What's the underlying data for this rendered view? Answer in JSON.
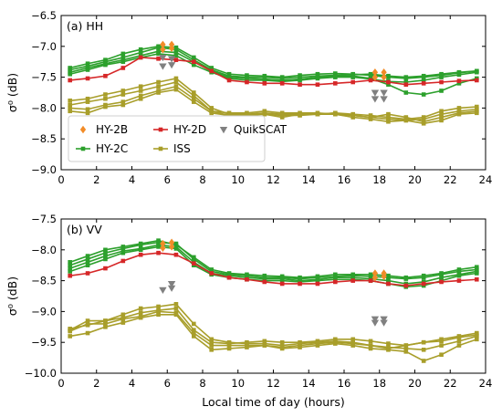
{
  "chart_data": [
    {
      "type": "line",
      "panel_label": "(a) HH",
      "ylabel": "σ⁰ (dB)",
      "xlabel": "",
      "xlim": [
        0,
        24
      ],
      "ylim": [
        -9.0,
        -6.5
      ],
      "xticks": [
        0,
        2,
        4,
        6,
        8,
        10,
        12,
        14,
        16,
        18,
        20,
        22,
        24
      ],
      "xtick_labels": [
        "0",
        "2",
        "4",
        "6",
        "8",
        "10",
        "12",
        "14",
        "16",
        "18",
        "20",
        "22",
        "24"
      ],
      "yticks": [
        -9.0,
        -8.5,
        -8.0,
        -7.5,
        -7.0,
        -6.5
      ],
      "ytick_labels": [
        "−9.0",
        "−8.5",
        "−8.0",
        "−7.5",
        "−7.0",
        "−6.5"
      ],
      "grid": false,
      "legend": {
        "placement": "lower-left",
        "entries": [
          {
            "label": "HY-2B",
            "color": "#f28c28",
            "marker": "diamond",
            "line": false
          },
          {
            "label": "HY-2D",
            "color": "#d62728",
            "marker": "square",
            "line": true
          },
          {
            "label": "QuikSCAT",
            "color": "#808080",
            "marker": "tri-down",
            "line": false
          },
          {
            "label": "HY-2C",
            "color": "#2ca02c",
            "marker": "square",
            "line": true
          },
          {
            "label": "ISS",
            "color": "#a89e2a",
            "marker": "square",
            "line": true
          }
        ]
      },
      "x": [
        0.5,
        1.5,
        2.5,
        3.5,
        4.5,
        5.5,
        6.5,
        7.5,
        8.5,
        9.5,
        10.5,
        11.5,
        12.5,
        13.5,
        14.5,
        15.5,
        16.5,
        17.5,
        18.5,
        19.5,
        20.5,
        21.5,
        22.5,
        23.5
      ],
      "series": [
        {
          "group": "HY-2C",
          "color": "#2ca02c",
          "values": [
            -7.38,
            -7.32,
            -7.25,
            -7.18,
            -7.1,
            -7.02,
            -7.05,
            -7.22,
            -7.38,
            -7.48,
            -7.5,
            -7.5,
            -7.52,
            -7.5,
            -7.48,
            -7.47,
            -7.46,
            -7.45,
            -7.48,
            -7.5,
            -7.48,
            -7.45,
            -7.42,
            -7.4
          ]
        },
        {
          "group": "HY-2C",
          "color": "#2ca02c",
          "values": [
            -7.42,
            -7.35,
            -7.28,
            -7.22,
            -7.15,
            -7.08,
            -7.1,
            -7.25,
            -7.4,
            -7.5,
            -7.52,
            -7.53,
            -7.55,
            -7.53,
            -7.5,
            -7.49,
            -7.48,
            -7.52,
            -7.62,
            -7.75,
            -7.78,
            -7.72,
            -7.6,
            -7.52
          ]
        },
        {
          "group": "HY-2C",
          "color": "#2ca02c",
          "values": [
            -7.35,
            -7.28,
            -7.22,
            -7.12,
            -7.05,
            -7.0,
            -7.02,
            -7.18,
            -7.35,
            -7.45,
            -7.47,
            -7.48,
            -7.5,
            -7.47,
            -7.45,
            -7.44,
            -7.45,
            -7.47,
            -7.5,
            -7.52,
            -7.5,
            -7.47,
            -7.43,
            -7.4
          ]
        },
        {
          "group": "HY-2C",
          "color": "#2ca02c",
          "values": [
            -7.45,
            -7.38,
            -7.3,
            -7.25,
            -7.18,
            -7.12,
            -7.15,
            -7.3,
            -7.42,
            -7.52,
            -7.55,
            -7.55,
            -7.57,
            -7.55,
            -7.52,
            -7.5,
            -7.5,
            -7.53,
            -7.57,
            -7.58,
            -7.55,
            -7.5,
            -7.46,
            -7.42
          ]
        },
        {
          "group": "HY-2D",
          "color": "#d62728",
          "values": [
            -7.55,
            -7.52,
            -7.48,
            -7.35,
            -7.18,
            -7.2,
            -7.22,
            -7.25,
            -7.4,
            -7.55,
            -7.58,
            -7.6,
            -7.6,
            -7.62,
            -7.62,
            -7.6,
            -7.58,
            -7.55,
            -7.58,
            -7.62,
            -7.6,
            -7.58,
            -7.56,
            -7.55
          ]
        },
        {
          "group": "ISS",
          "color": "#a89e2a",
          "values": [
            -7.88,
            -7.85,
            -7.78,
            -7.72,
            -7.65,
            -7.58,
            -7.52,
            -7.75,
            -8.0,
            -8.1,
            -8.1,
            -8.08,
            -8.1,
            -8.1,
            -8.1,
            -8.08,
            -8.1,
            -8.12,
            -8.15,
            -8.18,
            -8.15,
            -8.05,
            -8.0,
            -7.98
          ]
        },
        {
          "group": "ISS",
          "color": "#a89e2a",
          "values": [
            -7.95,
            -7.9,
            -7.85,
            -7.78,
            -7.72,
            -7.65,
            -7.58,
            -7.8,
            -8.05,
            -8.08,
            -8.08,
            -8.05,
            -8.08,
            -8.08,
            -8.08,
            -8.1,
            -8.12,
            -8.15,
            -8.18,
            -8.2,
            -8.18,
            -8.1,
            -8.05,
            -8.02
          ]
        },
        {
          "group": "ISS",
          "color": "#a89e2a",
          "values": [
            -8.0,
            -8.02,
            -7.95,
            -7.9,
            -7.8,
            -7.72,
            -7.65,
            -7.85,
            -8.05,
            -8.12,
            -8.1,
            -8.1,
            -8.12,
            -8.12,
            -8.1,
            -8.08,
            -8.12,
            -8.15,
            -8.1,
            -8.15,
            -8.22,
            -8.15,
            -8.08,
            -8.05
          ]
        },
        {
          "group": "ISS",
          "color": "#a89e2a",
          "values": [
            -8.05,
            -8.08,
            -7.98,
            -7.95,
            -7.85,
            -7.75,
            -7.7,
            -7.9,
            -8.08,
            -8.12,
            -8.12,
            -8.1,
            -8.15,
            -8.1,
            -8.1,
            -8.1,
            -8.15,
            -8.18,
            -8.22,
            -8.2,
            -8.25,
            -8.2,
            -8.1,
            -8.08
          ]
        }
      ],
      "scatter": [
        {
          "group": "HY-2B",
          "color": "#f28c28",
          "marker": "diamond",
          "points": [
            [
              5.75,
              -6.97
            ],
            [
              5.75,
              -7.05
            ],
            [
              6.25,
              -6.97
            ],
            [
              6.25,
              -7.03
            ],
            [
              17.75,
              -7.42
            ],
            [
              17.75,
              -7.5
            ],
            [
              18.25,
              -7.42
            ],
            [
              18.25,
              -7.5
            ]
          ]
        },
        {
          "group": "QuikSCAT",
          "color": "#808080",
          "marker": "tri-down",
          "points": [
            [
              5.75,
              -7.18
            ],
            [
              5.75,
              -7.32
            ],
            [
              6.25,
              -7.2
            ],
            [
              6.25,
              -7.3
            ],
            [
              17.75,
              -7.75
            ],
            [
              17.75,
              -7.85
            ],
            [
              18.25,
              -7.75
            ],
            [
              18.25,
              -7.85
            ]
          ]
        }
      ]
    },
    {
      "type": "line",
      "panel_label": "(b) VV",
      "ylabel": "σ⁰ (dB)",
      "xlabel": "Local time of day (hours)",
      "xlim": [
        0,
        24
      ],
      "ylim": [
        -10.0,
        -7.5
      ],
      "xticks": [
        0,
        2,
        4,
        6,
        8,
        10,
        12,
        14,
        16,
        18,
        20,
        22,
        24
      ],
      "xtick_labels": [
        "0",
        "2",
        "4",
        "6",
        "8",
        "10",
        "12",
        "14",
        "16",
        "18",
        "20",
        "22",
        "24"
      ],
      "yticks": [
        -10.0,
        -9.5,
        -9.0,
        -8.5,
        -8.0,
        -7.5
      ],
      "ytick_labels": [
        "−10.0",
        "−9.5",
        "−9.0",
        "−8.5",
        "−8.0",
        "−7.5"
      ],
      "grid": false,
      "x": [
        0.5,
        1.5,
        2.5,
        3.5,
        4.5,
        5.5,
        6.5,
        7.5,
        8.5,
        9.5,
        10.5,
        11.5,
        12.5,
        13.5,
        14.5,
        15.5,
        16.5,
        17.5,
        18.5,
        19.5,
        20.5,
        21.5,
        22.5,
        23.5
      ],
      "series": [
        {
          "group": "HY-2C",
          "color": "#2ca02c",
          "values": [
            -8.25,
            -8.15,
            -8.05,
            -7.98,
            -7.92,
            -7.88,
            -7.9,
            -8.15,
            -8.35,
            -8.4,
            -8.42,
            -8.45,
            -8.45,
            -8.47,
            -8.45,
            -8.43,
            -8.42,
            -8.43,
            -8.45,
            -8.47,
            -8.45,
            -8.4,
            -8.35,
            -8.32
          ]
        },
        {
          "group": "HY-2C",
          "color": "#2ca02c",
          "values": [
            -8.3,
            -8.2,
            -8.1,
            -8.02,
            -7.98,
            -7.92,
            -7.95,
            -8.2,
            -8.38,
            -8.42,
            -8.45,
            -8.47,
            -8.47,
            -8.5,
            -8.48,
            -8.45,
            -8.45,
            -8.47,
            -8.5,
            -8.55,
            -8.52,
            -8.45,
            -8.4,
            -8.35
          ]
        },
        {
          "group": "HY-2C",
          "color": "#2ca02c",
          "values": [
            -8.2,
            -8.1,
            -8.0,
            -7.95,
            -7.9,
            -7.85,
            -7.92,
            -8.12,
            -8.32,
            -8.38,
            -8.4,
            -8.42,
            -8.43,
            -8.45,
            -8.43,
            -8.4,
            -8.4,
            -8.4,
            -8.42,
            -8.45,
            -8.42,
            -8.38,
            -8.32,
            -8.28
          ]
        },
        {
          "group": "HY-2C",
          "color": "#2ca02c",
          "values": [
            -8.35,
            -8.25,
            -8.15,
            -8.05,
            -8.0,
            -7.95,
            -7.98,
            -8.25,
            -8.4,
            -8.45,
            -8.48,
            -8.5,
            -8.5,
            -8.52,
            -8.5,
            -8.48,
            -8.48,
            -8.5,
            -8.55,
            -8.6,
            -8.58,
            -8.5,
            -8.42,
            -8.38
          ]
        },
        {
          "group": "HY-2D",
          "color": "#d62728",
          "values": [
            -8.42,
            -8.38,
            -8.3,
            -8.18,
            -8.08,
            -8.05,
            -8.08,
            -8.22,
            -8.38,
            -8.45,
            -8.48,
            -8.52,
            -8.55,
            -8.55,
            -8.55,
            -8.52,
            -8.5,
            -8.5,
            -8.55,
            -8.58,
            -8.55,
            -8.52,
            -8.5,
            -8.48
          ]
        },
        {
          "group": "ISS",
          "color": "#a89e2a",
          "values": [
            -9.28,
            -9.22,
            -9.15,
            -9.1,
            -9.02,
            -8.98,
            -8.95,
            -9.3,
            -9.5,
            -9.52,
            -9.5,
            -9.48,
            -9.5,
            -9.5,
            -9.48,
            -9.45,
            -9.45,
            -9.48,
            -9.52,
            -9.55,
            -9.5,
            -9.45,
            -9.4,
            -9.35
          ]
        },
        {
          "group": "ISS",
          "color": "#a89e2a",
          "values": [
            -9.3,
            -9.15,
            -9.15,
            -9.05,
            -8.95,
            -8.92,
            -8.88,
            -9.2,
            -9.45,
            -9.5,
            -9.52,
            -9.52,
            -9.55,
            -9.52,
            -9.5,
            -9.48,
            -9.5,
            -9.55,
            -9.6,
            -9.55,
            -9.5,
            -9.48,
            -9.42,
            -9.38
          ]
        },
        {
          "group": "ISS",
          "color": "#a89e2a",
          "values": [
            -9.32,
            -9.2,
            -9.2,
            -9.12,
            -9.08,
            -9.0,
            -9.02,
            -9.35,
            -9.55,
            -9.55,
            -9.55,
            -9.55,
            -9.58,
            -9.55,
            -9.52,
            -9.5,
            -9.52,
            -9.55,
            -9.58,
            -9.6,
            -9.62,
            -9.55,
            -9.48,
            -9.4
          ]
        },
        {
          "group": "ISS",
          "color": "#a89e2a",
          "values": [
            -9.4,
            -9.35,
            -9.25,
            -9.18,
            -9.1,
            -9.05,
            -9.05,
            -9.4,
            -9.62,
            -9.6,
            -9.58,
            -9.55,
            -9.6,
            -9.58,
            -9.55,
            -9.52,
            -9.55,
            -9.6,
            -9.62,
            -9.65,
            -9.8,
            -9.7,
            -9.55,
            -9.45
          ]
        }
      ],
      "scatter": [
        {
          "group": "HY-2B",
          "color": "#f28c28",
          "marker": "diamond",
          "points": [
            [
              5.75,
              -7.9
            ],
            [
              5.75,
              -7.97
            ],
            [
              6.25,
              -7.88
            ],
            [
              6.25,
              -7.95
            ],
            [
              17.75,
              -8.38
            ],
            [
              17.75,
              -8.45
            ],
            [
              18.25,
              -8.38
            ],
            [
              18.25,
              -8.43
            ]
          ]
        },
        {
          "group": "QuikSCAT",
          "color": "#808080",
          "marker": "tri-down",
          "points": [
            [
              5.75,
              -8.65
            ],
            [
              6.25,
              -8.55
            ],
            [
              6.25,
              -8.62
            ],
            [
              17.75,
              -9.12
            ],
            [
              17.75,
              -9.18
            ],
            [
              18.25,
              -9.12
            ],
            [
              18.25,
              -9.18
            ]
          ]
        }
      ]
    }
  ]
}
